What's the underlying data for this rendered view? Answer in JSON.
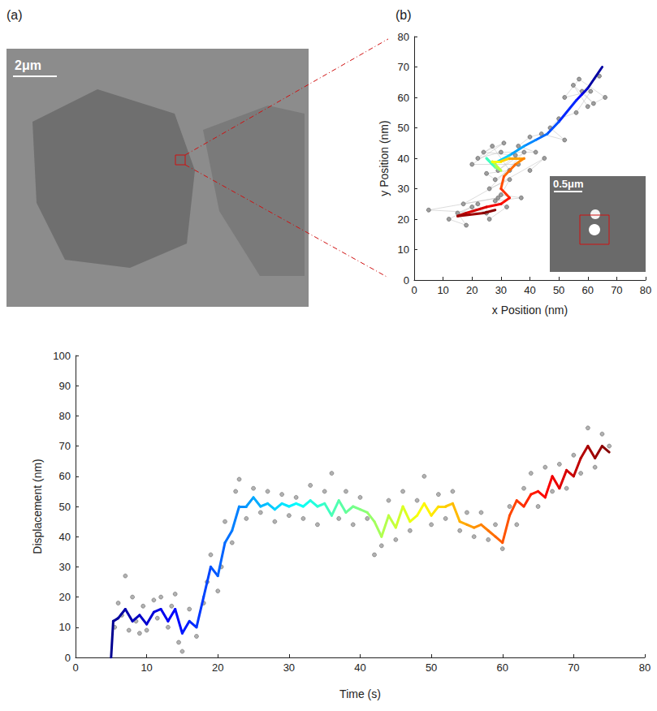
{
  "figure": {
    "image_panel": {
      "label": "(a)",
      "scale_bar": "2μm"
    },
    "inset": {
      "scale_bar": "0.5μm"
    }
  },
  "chart_data": [
    {
      "type": "line",
      "panel_label": "(b)",
      "xlabel": "x Position (nm)",
      "ylabel": "y Position (nm)",
      "xlim": [
        0,
        80
      ],
      "ylim": [
        0,
        80
      ],
      "xticks": [
        0,
        10,
        20,
        30,
        40,
        50,
        60,
        70,
        80
      ],
      "yticks": [
        0,
        10,
        20,
        30,
        40,
        50,
        60,
        70,
        80
      ],
      "grid": false,
      "series": [
        {
          "type": "line",
          "color": "#9e9e9e",
          "marker": "circle",
          "x": [
            64,
            58,
            62,
            55,
            60,
            66,
            57,
            52,
            61,
            56,
            50,
            47,
            52,
            44,
            40,
            36,
            42,
            30,
            22,
            27,
            33,
            25,
            28,
            36,
            20,
            31,
            24,
            35,
            29,
            38,
            26,
            33,
            30,
            37,
            28,
            32,
            26,
            22,
            15,
            18,
            12,
            20,
            25,
            5,
            29,
            17,
            45,
            40
          ],
          "y": [
            67,
            62,
            58,
            64,
            57,
            60,
            66,
            60,
            62,
            55,
            53,
            50,
            46,
            48,
            47,
            44,
            42,
            42,
            40,
            44,
            36,
            35,
            33,
            38,
            38,
            45,
            42,
            41,
            36,
            42,
            30,
            33,
            28,
            27,
            26,
            24,
            20,
            25,
            22,
            18,
            20,
            24,
            22,
            23,
            27,
            25,
            40,
            36
          ]
        },
        {
          "type": "line",
          "color": "jet",
          "x": [
            65,
            60,
            58,
            56,
            50,
            46,
            42,
            38,
            33,
            27,
            25,
            28,
            30,
            27,
            30,
            33,
            38,
            35,
            31,
            30,
            33,
            30,
            25,
            18,
            15,
            24,
            28
          ],
          "y": [
            70,
            63,
            61,
            59,
            52,
            48,
            46,
            44,
            41,
            38,
            40,
            37,
            36,
            39,
            39,
            40,
            40,
            38,
            34,
            30,
            27,
            25,
            24,
            22,
            21,
            22,
            23
          ],
          "time": [
            5,
            8,
            12,
            15,
            18,
            20,
            22,
            24,
            26,
            30,
            34,
            38,
            42,
            46,
            50,
            54,
            56,
            58,
            60,
            62,
            64,
            66,
            68,
            70,
            72,
            74,
            75
          ]
        }
      ]
    },
    {
      "type": "line",
      "xlabel": "Time (s)",
      "ylabel": "Displacement (nm)",
      "xlim": [
        0,
        80
      ],
      "ylim": [
        0,
        100
      ],
      "xticks": [
        0,
        10,
        20,
        30,
        40,
        50,
        60,
        70,
        80
      ],
      "yticks": [
        0,
        10,
        20,
        30,
        40,
        50,
        60,
        70,
        80,
        90,
        100
      ],
      "grid": false,
      "series": [
        {
          "type": "scatter",
          "color": "#9e9e9e",
          "marker": "circle",
          "x": [
            5.5,
            6,
            6.5,
            7,
            7.5,
            8,
            8.5,
            9,
            9.5,
            10,
            11,
            11.5,
            12,
            13,
            13.5,
            14,
            14.5,
            15,
            16,
            17,
            18,
            18.5,
            19,
            20,
            20.5,
            21,
            22,
            22.5,
            23,
            24,
            25,
            26,
            27,
            28,
            29,
            30,
            31,
            32,
            33,
            34,
            35,
            36,
            37,
            38,
            39,
            40,
            41,
            42,
            43,
            44,
            45,
            46,
            47,
            48,
            49,
            50,
            51,
            52,
            53,
            54,
            55,
            56,
            57,
            58,
            59,
            60,
            61,
            62,
            63,
            64,
            65,
            66,
            67,
            68,
            69,
            70,
            71,
            72,
            73,
            74,
            75
          ],
          "values": [
            10,
            18,
            14,
            27,
            9,
            20,
            12,
            8,
            17,
            9,
            19,
            13,
            20,
            10,
            17,
            21,
            5,
            2,
            16,
            7,
            18,
            25,
            34,
            22,
            30,
            45,
            38,
            55,
            59,
            46,
            56,
            48,
            55,
            45,
            54,
            47,
            53,
            46,
            57,
            44,
            55,
            61,
            46,
            55,
            44,
            53,
            46,
            34,
            37,
            52,
            39,
            55,
            42,
            52,
            60,
            44,
            54,
            46,
            55,
            42,
            48,
            40,
            48,
            39,
            44,
            36,
            50,
            44,
            56,
            61,
            50,
            63,
            55,
            64,
            56,
            67,
            61,
            76,
            63,
            74,
            70
          ]
        },
        {
          "type": "line",
          "color": "jet",
          "x": [
            5,
            5.3,
            6,
            7,
            8,
            9,
            10,
            11,
            12,
            13,
            14,
            15,
            16,
            17,
            18,
            19,
            20,
            21,
            22,
            23,
            24,
            25,
            26,
            27,
            28,
            29,
            30,
            31,
            32,
            33,
            34,
            35,
            36,
            37,
            38,
            39,
            40,
            41,
            42,
            43,
            44,
            45,
            46,
            47,
            48,
            49,
            50,
            51,
            52,
            53,
            54,
            55,
            56,
            57,
            58,
            59,
            60,
            61,
            62,
            63,
            64,
            65,
            66,
            67,
            68,
            69,
            70,
            71,
            72,
            73,
            74,
            75
          ],
          "values": [
            0,
            12,
            13,
            16,
            12,
            14,
            11,
            15,
            16,
            12,
            16,
            8,
            12,
            10,
            20,
            30,
            27,
            38,
            42,
            50,
            50,
            53,
            50,
            51,
            49,
            51,
            50,
            51,
            50,
            52,
            50,
            51,
            47,
            52,
            48,
            50,
            49,
            48,
            45,
            40,
            47,
            43,
            50,
            45,
            47,
            51,
            47,
            50,
            50,
            51,
            45,
            44,
            43,
            44,
            42,
            40,
            38,
            47,
            52,
            50,
            54,
            55,
            53,
            60,
            56,
            62,
            60,
            66,
            70,
            66,
            70,
            68
          ]
        }
      ]
    }
  ]
}
